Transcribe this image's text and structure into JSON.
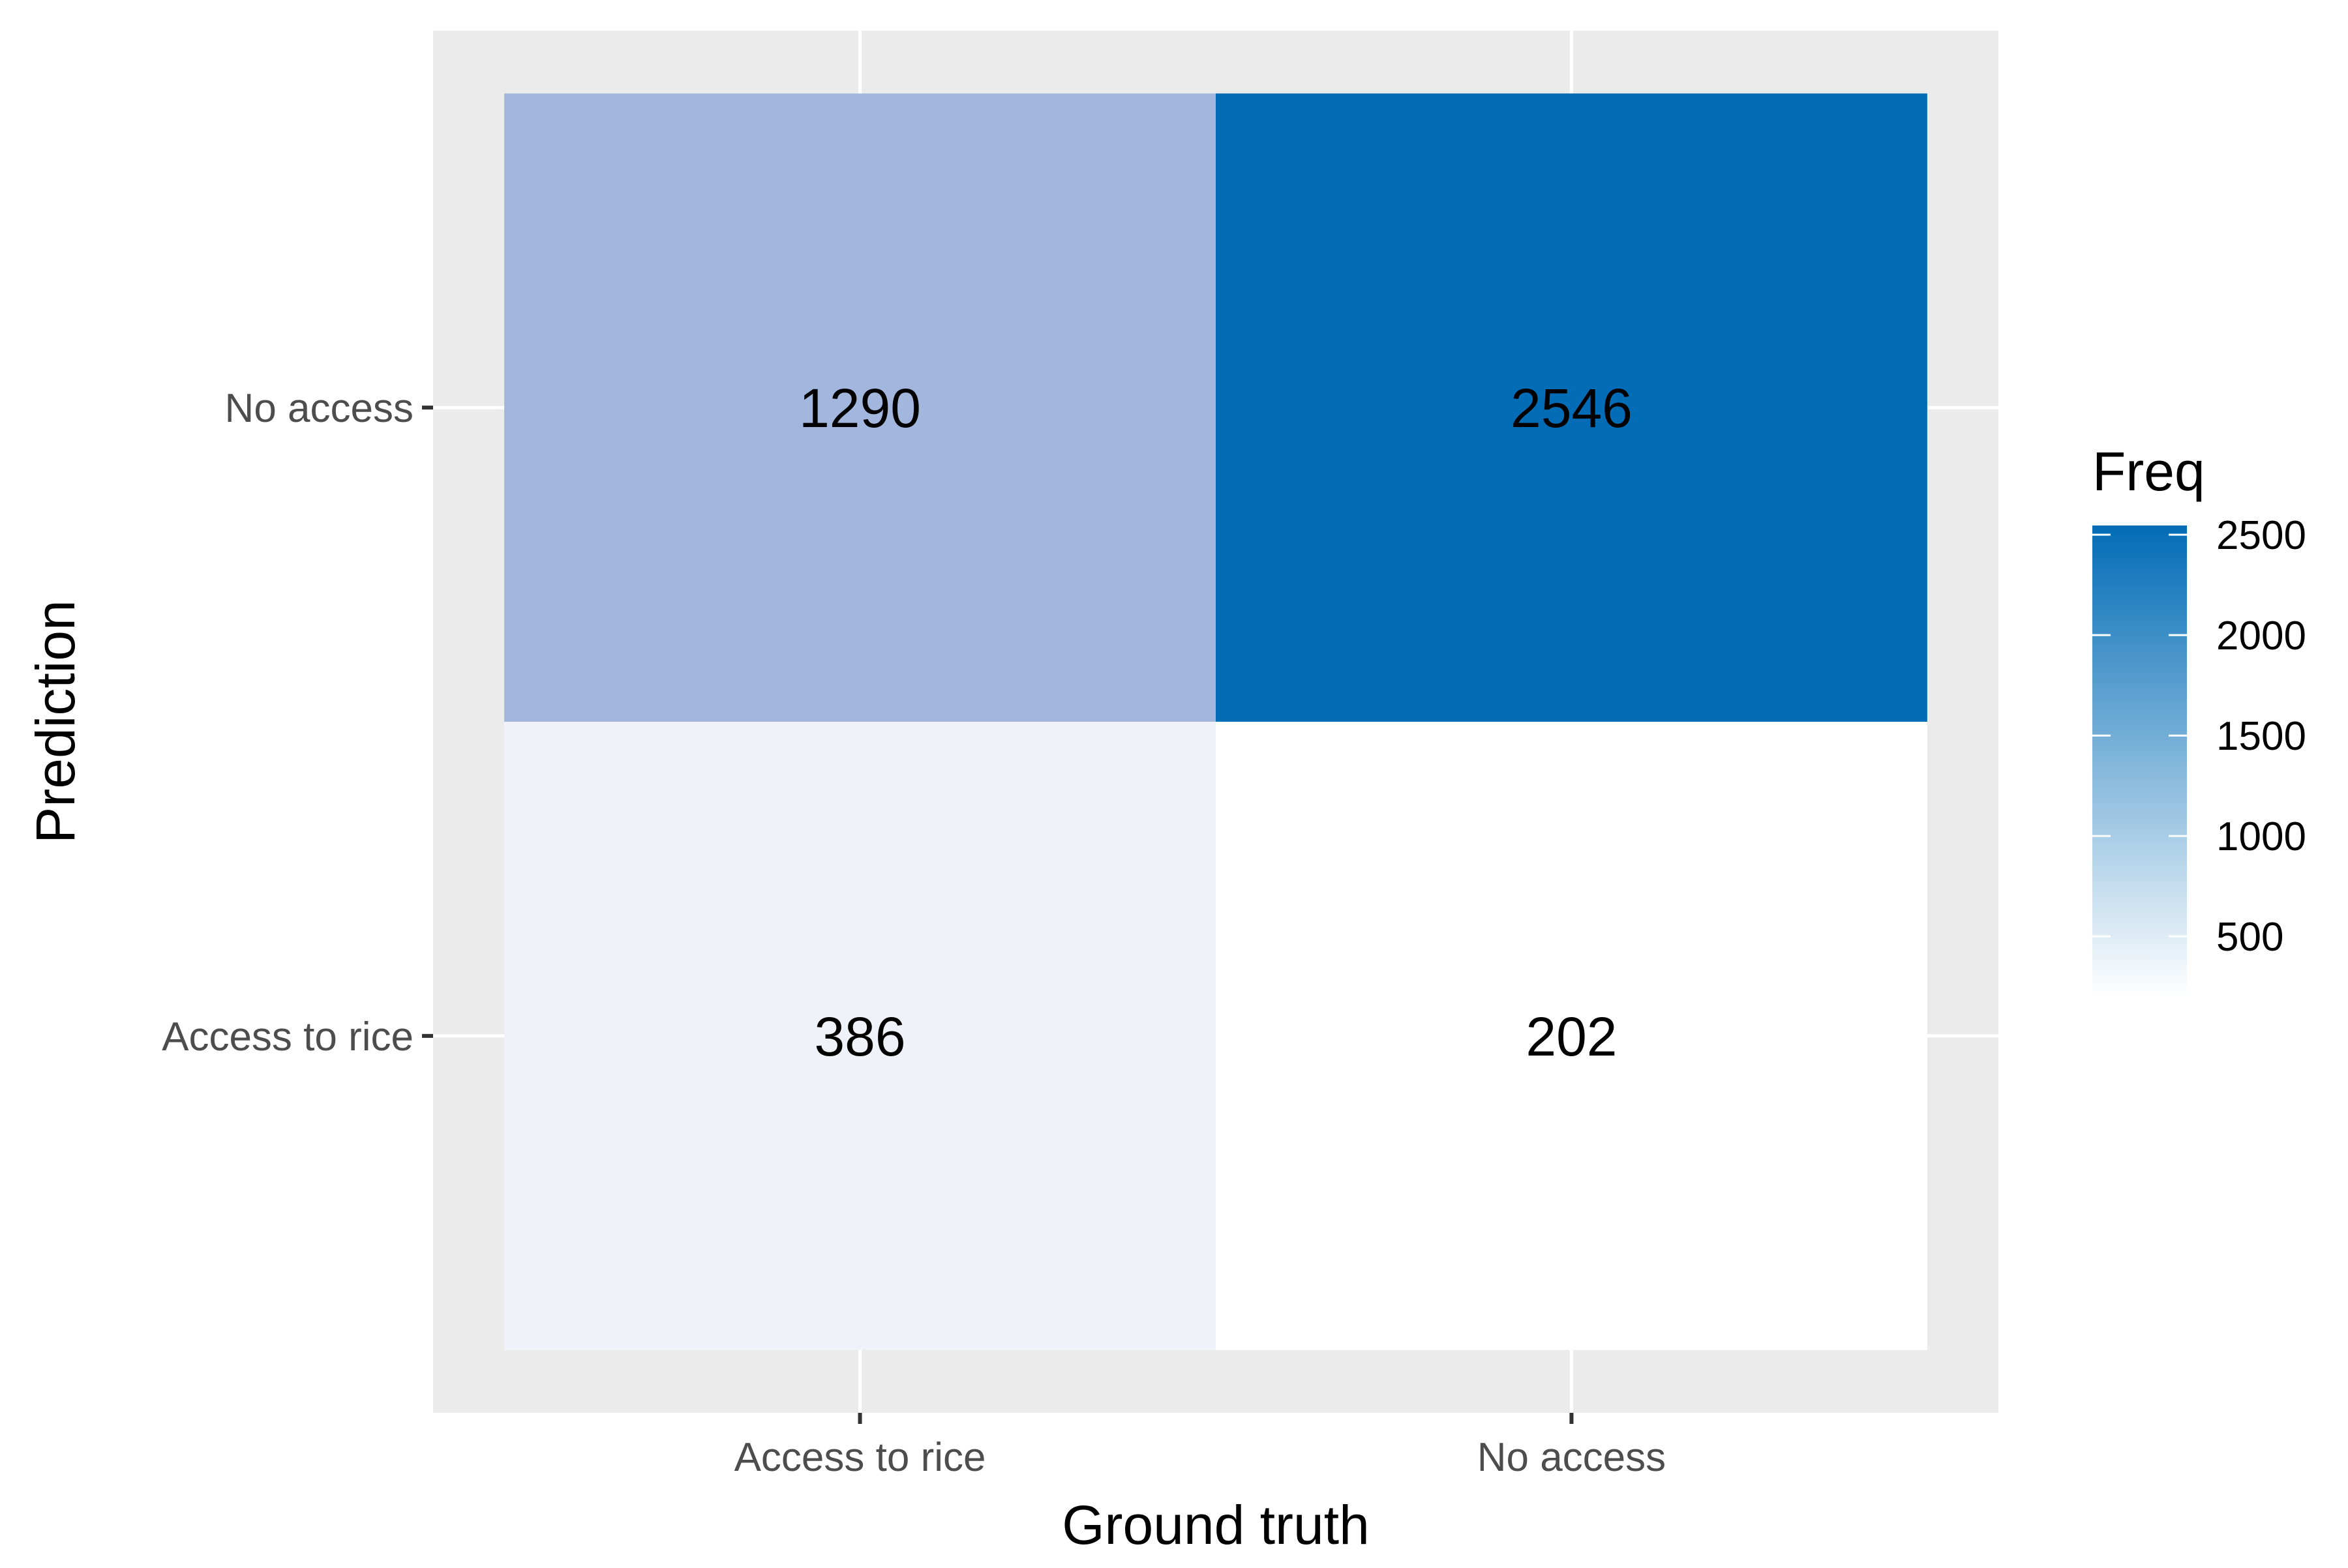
{
  "chart_data": {
    "type": "heatmap",
    "title": "",
    "xlabel": "Ground truth",
    "ylabel": "Prediction",
    "x_categories": [
      "Access to rice",
      "No access"
    ],
    "y_categories": [
      "Access to rice",
      "No access"
    ],
    "cells": [
      {
        "x": "Access to rice",
        "y": "Access to rice",
        "value": 386
      },
      {
        "x": "No access",
        "y": "Access to rice",
        "value": 202
      },
      {
        "x": "Access to rice",
        "y": "No access",
        "value": 1290
      },
      {
        "x": "No access",
        "y": "No access",
        "value": 2546
      }
    ],
    "legend": {
      "title": "Freq",
      "ticks": [
        500,
        1000,
        1500,
        2000,
        2500
      ],
      "low_color": "#ffffff",
      "high_color": "#026cb6",
      "placement": "right"
    },
    "background_color": "#ebebeb",
    "grid": true
  }
}
